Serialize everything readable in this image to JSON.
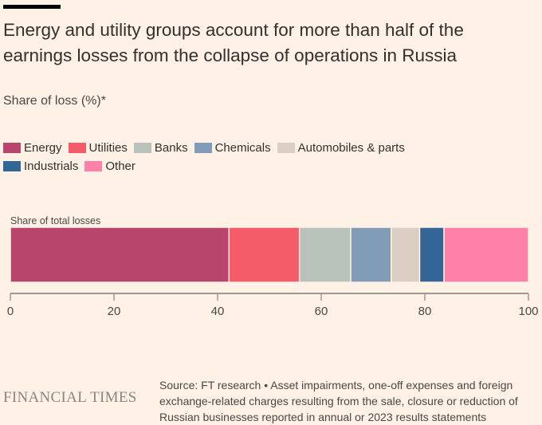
{
  "header": {
    "title": "Energy and utility groups account for more than half of the earnings losses from the collapse of operations in Russia",
    "subtitle": "Share of loss (%)*"
  },
  "legend": [
    {
      "label": "Energy",
      "color": "#b8456b"
    },
    {
      "label": "Utilities",
      "color": "#f45c6a"
    },
    {
      "label": "Banks",
      "color": "#b8c2b8"
    },
    {
      "label": "Chemicals",
      "color": "#809cb7"
    },
    {
      "label": "Automobiles & parts",
      "color": "#dbcfc4"
    },
    {
      "label": "Industrials",
      "color": "#336596"
    },
    {
      "label": "Other",
      "color": "#ff80a8"
    }
  ],
  "chart_data": {
    "type": "bar",
    "orientation": "horizontal-stacked",
    "title": "Energy and utility groups account for more than half of the earnings losses from the collapse of operations in Russia",
    "ylabel": "Share of loss (%)*",
    "categories": [
      "Share of total losses"
    ],
    "series": [
      {
        "name": "Energy",
        "values": [
          42.2
        ]
      },
      {
        "name": "Utilities",
        "values": [
          13.6
        ]
      },
      {
        "name": "Banks",
        "values": [
          9.9
        ]
      },
      {
        "name": "Chemicals",
        "values": [
          7.8
        ]
      },
      {
        "name": "Automobiles & parts",
        "values": [
          5.5
        ]
      },
      {
        "name": "Industrials",
        "values": [
          4.7
        ]
      },
      {
        "name": "Other",
        "values": [
          16.3
        ]
      }
    ],
    "xlim": [
      0,
      100
    ],
    "xticks": [
      0,
      20,
      40,
      60,
      80,
      100
    ],
    "grid": false,
    "legend_position": "top-left"
  },
  "footer": {
    "logo": "FINANCIAL TIMES",
    "note": "Source: FT research • Asset impairments, one-off expenses and foreign exchange-related charges resulting from the sale, closure or reduction of Russian businesses reported in annual or 2023 results statements"
  }
}
